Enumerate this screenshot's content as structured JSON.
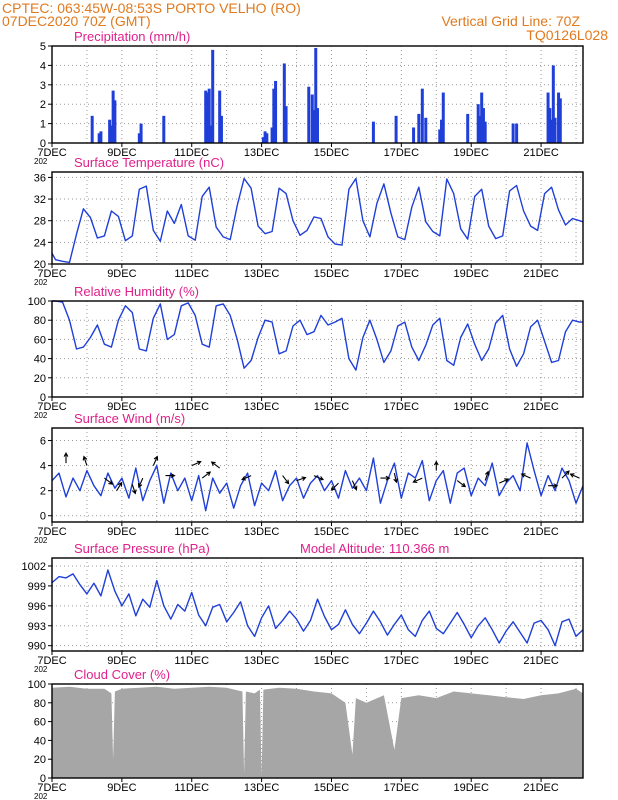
{
  "header": {
    "left_line1": "CPTEC:   063:45W-08:53S  PORTO VELHO (RO)",
    "left_line2": "07DEC2020 70Z (GMT)",
    "right_line1": "Vertical Grid Line: 70Z",
    "right_line2": "TQ0126L028"
  },
  "colors": {
    "header": "#e07a1f",
    "title": "#e0208c",
    "line": "#1f3fd8",
    "bar": "#1f3fd8",
    "cloud": "#a6a6a6",
    "axis": "#000000",
    "grid": "#9a9a9a"
  },
  "x_tick_labels": [
    "7DEC",
    "9DEC",
    "11DEC",
    "13DEC",
    "15DEC",
    "17DEC",
    "19DEC",
    "21DEC"
  ],
  "x_tick_sublabel": "202",
  "chart_data": [
    {
      "type": "bar",
      "title": "Precipitation  (mm/h)",
      "x_range": [
        0,
        15.2
      ],
      "ylim": [
        0,
        5
      ],
      "yticks": [
        0,
        1,
        2,
        3,
        4,
        5
      ],
      "series": [
        {
          "x": [
            1.15,
            1.35,
            1.4,
            1.65,
            1.7,
            1.75,
            1.8,
            2.5,
            2.55,
            3.2,
            4.4,
            4.45,
            4.5,
            4.55,
            4.6,
            4.8,
            4.85,
            6.05,
            6.1,
            6.15,
            6.3,
            6.35,
            6.4,
            6.65,
            6.7,
            7.35,
            7.45,
            7.5,
            7.55,
            7.6,
            9.2,
            9.85,
            10.35,
            10.5,
            10.6,
            10.7,
            11.1,
            11.15,
            11.2,
            11.9,
            12.2,
            12.25,
            12.3,
            12.35,
            12.4,
            13.2,
            13.3,
            14.2,
            14.25,
            14.3,
            14.35,
            14.4,
            14.5,
            14.55
          ],
          "y": [
            1.4,
            0.5,
            0.6,
            1.2,
            0.9,
            2.7,
            2.2,
            0.5,
            1.0,
            1.4,
            2.7,
            2.6,
            2.8,
            0.9,
            4.8,
            2.7,
            1.4,
            0.3,
            0.6,
            0.5,
            0.8,
            2.8,
            3.2,
            4.1,
            1.9,
            2.9,
            2.5,
            1.7,
            4.9,
            1.8,
            1.1,
            1.4,
            0.8,
            1.5,
            2.8,
            1.3,
            0.7,
            1.2,
            2.6,
            1.5,
            2.0,
            1.4,
            2.6,
            1.8,
            1.1,
            1.0,
            1.0,
            2.6,
            1.8,
            1.2,
            4.0,
            1.3,
            2.6,
            2.3
          ]
        }
      ]
    },
    {
      "type": "line",
      "title": "Surface Temperature  (nC)",
      "x_range": [
        0,
        15.2
      ],
      "ylim": [
        20,
        37
      ],
      "yticks": [
        20,
        24,
        28,
        32,
        36
      ],
      "series": [
        {
          "x": [
            0,
            0.1,
            0.3,
            0.5,
            0.7,
            0.9,
            1.1,
            1.3,
            1.5,
            1.7,
            1.9,
            2.1,
            2.3,
            2.5,
            2.7,
            2.9,
            3.1,
            3.3,
            3.5,
            3.7,
            3.9,
            4.1,
            4.3,
            4.5,
            4.7,
            4.9,
            5.1,
            5.3,
            5.5,
            5.7,
            5.9,
            6.1,
            6.3,
            6.5,
            6.7,
            6.9,
            7.1,
            7.3,
            7.5,
            7.7,
            7.9,
            8.1,
            8.3,
            8.5,
            8.7,
            8.9,
            9.1,
            9.3,
            9.5,
            9.7,
            9.9,
            10.1,
            10.3,
            10.5,
            10.7,
            10.9,
            11.1,
            11.3,
            11.5,
            11.7,
            11.9,
            12.1,
            12.3,
            12.5,
            12.7,
            12.9,
            13.1,
            13.3,
            13.5,
            13.7,
            13.9,
            14.1,
            14.3,
            14.5,
            14.7,
            14.9,
            15.1,
            15.2
          ],
          "y": [
            22,
            20.8,
            20.5,
            20.3,
            25.5,
            30.2,
            28.6,
            24.8,
            25.2,
            29.8,
            28.8,
            24.3,
            25.2,
            33.8,
            34.4,
            26.2,
            24.2,
            29.8,
            27.5,
            31.0,
            25.2,
            24.4,
            32.5,
            34.2,
            26.8,
            25.0,
            24.5,
            30.8,
            35.8,
            34.0,
            27.0,
            25.6,
            26.0,
            34.0,
            33.0,
            28.0,
            25.3,
            26.2,
            28.7,
            28.4,
            25.0,
            23.7,
            23.5,
            33.8,
            35.8,
            28.0,
            25.0,
            31.2,
            34.8,
            29.4,
            25.0,
            24.5,
            30.5,
            34.2,
            27.8,
            26.0,
            25.2,
            35.7,
            33.0,
            26.5,
            24.6,
            32.5,
            33.8,
            27.0,
            24.7,
            25.2,
            33.5,
            34.5,
            29.8,
            27.0,
            26.2,
            33.0,
            34.2,
            30.0,
            27.2,
            28.4,
            28.0,
            27.8
          ]
        }
      ]
    },
    {
      "type": "line",
      "title": "Relative Humidity  (%)",
      "x_range": [
        0,
        15.2
      ],
      "ylim": [
        0,
        100
      ],
      "yticks": [
        0,
        20,
        40,
        60,
        80,
        100
      ],
      "series": [
        {
          "x": [
            0,
            0.1,
            0.3,
            0.5,
            0.7,
            0.9,
            1.1,
            1.3,
            1.5,
            1.7,
            1.9,
            2.1,
            2.3,
            2.5,
            2.7,
            2.9,
            3.1,
            3.3,
            3.5,
            3.7,
            3.9,
            4.1,
            4.3,
            4.5,
            4.7,
            4.9,
            5.1,
            5.3,
            5.5,
            5.7,
            5.9,
            6.1,
            6.3,
            6.5,
            6.7,
            6.9,
            7.1,
            7.3,
            7.5,
            7.7,
            7.9,
            8.1,
            8.3,
            8.5,
            8.7,
            8.9,
            9.1,
            9.3,
            9.5,
            9.7,
            9.9,
            10.1,
            10.3,
            10.5,
            10.7,
            10.9,
            11.1,
            11.3,
            11.5,
            11.7,
            11.9,
            12.1,
            12.3,
            12.5,
            12.7,
            12.9,
            13.1,
            13.3,
            13.5,
            13.7,
            13.9,
            14.1,
            14.3,
            14.5,
            14.7,
            14.9,
            15.1,
            15.2
          ],
          "y": [
            100,
            100,
            99,
            80,
            50,
            52,
            62,
            75,
            55,
            52,
            80,
            95,
            88,
            50,
            48,
            82,
            97,
            60,
            65,
            95,
            98,
            85,
            55,
            52,
            95,
            97,
            85,
            60,
            30,
            38,
            62,
            80,
            78,
            45,
            48,
            74,
            80,
            65,
            68,
            85,
            75,
            78,
            82,
            40,
            28,
            62,
            80,
            60,
            36,
            48,
            74,
            78,
            52,
            38,
            54,
            75,
            82,
            38,
            33,
            62,
            76,
            55,
            38,
            50,
            77,
            85,
            50,
            32,
            45,
            73,
            80,
            58,
            36,
            38,
            68,
            80,
            78,
            78
          ]
        }
      ]
    },
    {
      "type": "line",
      "title": "Surface Wind  (m/s)",
      "x_range": [
        0,
        15.2
      ],
      "ylim": [
        -0.5,
        7
      ],
      "yticks": [
        0,
        2,
        4,
        6
      ],
      "series": [
        {
          "x": [
            0,
            0.2,
            0.4,
            0.6,
            0.8,
            1.0,
            1.2,
            1.4,
            1.6,
            1.8,
            2.0,
            2.2,
            2.4,
            2.6,
            2.8,
            3.0,
            3.2,
            3.4,
            3.6,
            3.8,
            4.0,
            4.2,
            4.4,
            4.6,
            4.8,
            5.0,
            5.2,
            5.4,
            5.6,
            5.8,
            6.0,
            6.2,
            6.4,
            6.6,
            6.8,
            7.0,
            7.2,
            7.4,
            7.6,
            7.8,
            8.0,
            8.2,
            8.4,
            8.6,
            8.8,
            9.0,
            9.2,
            9.4,
            9.6,
            9.8,
            10.0,
            10.2,
            10.4,
            10.6,
            10.8,
            11.0,
            11.2,
            11.4,
            11.6,
            11.8,
            12.0,
            12.2,
            12.4,
            12.6,
            12.8,
            13.0,
            13.2,
            13.4,
            13.6,
            13.8,
            14.0,
            14.2,
            14.4,
            14.6,
            14.8,
            15.0,
            15.2
          ],
          "y": [
            2.8,
            3.4,
            1.5,
            3.0,
            2.0,
            3.6,
            2.4,
            1.6,
            3.4,
            2.2,
            3.0,
            1.4,
            3.8,
            1.2,
            2.8,
            4.0,
            1.0,
            3.4,
            2.0,
            3.0,
            1.2,
            3.2,
            0.4,
            3.0,
            1.8,
            2.6,
            0.6,
            2.4,
            3.4,
            0.8,
            2.6,
            2.0,
            3.6,
            1.2,
            2.4,
            3.0,
            1.4,
            2.6,
            3.2,
            2.0,
            2.8,
            1.4,
            3.6,
            2.2,
            3.0,
            2.0,
            4.6,
            1.0,
            2.8,
            4.2,
            1.4,
            3.4,
            3.0,
            4.4,
            1.2,
            2.8,
            3.6,
            1.0,
            3.4,
            3.8,
            1.6,
            3.0,
            2.4,
            4.2,
            1.6,
            2.6,
            3.2,
            2.0,
            5.8,
            3.6,
            1.6,
            3.2,
            2.0,
            3.8,
            2.8,
            1.0,
            2.4
          ]
        }
      ],
      "vectors": [
        {
          "x": 0.4,
          "y": 4.2,
          "u": 0,
          "v": 1
        },
        {
          "x": 1.0,
          "y": 4.0,
          "u": -0.3,
          "v": 0.9
        },
        {
          "x": 1.5,
          "y": 3.0,
          "u": 0.8,
          "v": -0.6
        },
        {
          "x": 1.85,
          "y": 2.0,
          "u": 0.5,
          "v": 0.8
        },
        {
          "x": 2.3,
          "y": 2.5,
          "u": 0.3,
          "v": -0.9
        },
        {
          "x": 2.6,
          "y": 3.0,
          "u": -0.4,
          "v": -0.9
        },
        {
          "x": 2.9,
          "y": 4.0,
          "u": 0.4,
          "v": 0.9
        },
        {
          "x": 3.25,
          "y": 3.2,
          "u": 0.9,
          "v": 0
        },
        {
          "x": 4.0,
          "y": 4.0,
          "u": 0.9,
          "v": 0.4
        },
        {
          "x": 4.3,
          "y": 3.0,
          "u": 0.8,
          "v": 0.6
        },
        {
          "x": 4.8,
          "y": 3.8,
          "u": -0.8,
          "v": 0.6
        },
        {
          "x": 5.7,
          "y": 3.2,
          "u": -0.9,
          "v": -0.4
        },
        {
          "x": 6.6,
          "y": 3.2,
          "u": 0.6,
          "v": -0.8
        },
        {
          "x": 7.0,
          "y": 2.8,
          "u": 0.9,
          "v": 0.3
        },
        {
          "x": 7.5,
          "y": 3.2,
          "u": 0.9,
          "v": -0.4
        },
        {
          "x": 8.2,
          "y": 2.6,
          "u": -0.7,
          "v": -0.7
        },
        {
          "x": 8.6,
          "y": 2.8,
          "u": 0.4,
          "v": -0.9
        },
        {
          "x": 9.4,
          "y": 3.0,
          "u": 0.9,
          "v": 0
        },
        {
          "x": 9.8,
          "y": 3.4,
          "u": 0.2,
          "v": -0.9
        },
        {
          "x": 10.6,
          "y": 3.0,
          "u": -0.9,
          "v": -0.4
        },
        {
          "x": 11.0,
          "y": 3.6,
          "u": 0,
          "v": 0.9
        },
        {
          "x": 11.6,
          "y": 2.8,
          "u": 0.8,
          "v": -0.6
        },
        {
          "x": 12.4,
          "y": 2.8,
          "u": 0.3,
          "v": 0.9
        },
        {
          "x": 12.8,
          "y": 2.6,
          "u": 0.9,
          "v": 0.4
        },
        {
          "x": 13.7,
          "y": 3.0,
          "u": -0.9,
          "v": 0.4
        },
        {
          "x": 14.2,
          "y": 2.4,
          "u": 0.9,
          "v": 0
        },
        {
          "x": 14.6,
          "y": 3.0,
          "u": 0.7,
          "v": 0.7
        },
        {
          "x": 15.1,
          "y": 3.0,
          "u": -0.9,
          "v": 0.4
        }
      ]
    },
    {
      "type": "line",
      "title": "Surface Pressure  (hPa)",
      "annotation": "Model Altitude: 110.366  m",
      "x_range": [
        0,
        15.2
      ],
      "ylim": [
        989.2,
        1003.2
      ],
      "yticks": [
        990,
        993,
        996,
        999,
        1002
      ],
      "series": [
        {
          "x": [
            0,
            0.2,
            0.4,
            0.6,
            0.8,
            1.0,
            1.2,
            1.4,
            1.6,
            1.8,
            2.0,
            2.2,
            2.4,
            2.6,
            2.8,
            3.0,
            3.2,
            3.4,
            3.6,
            3.8,
            4.0,
            4.2,
            4.4,
            4.6,
            4.8,
            5.0,
            5.2,
            5.4,
            5.6,
            5.8,
            6.0,
            6.2,
            6.4,
            6.6,
            6.8,
            7.0,
            7.2,
            7.4,
            7.6,
            7.8,
            8.0,
            8.2,
            8.4,
            8.6,
            8.8,
            9.0,
            9.2,
            9.4,
            9.6,
            9.8,
            10.0,
            10.2,
            10.4,
            10.6,
            10.8,
            11.0,
            11.2,
            11.4,
            11.6,
            11.8,
            12.0,
            12.2,
            12.4,
            12.6,
            12.8,
            13.0,
            13.2,
            13.4,
            13.6,
            13.8,
            14.0,
            14.2,
            14.4,
            14.6,
            14.8,
            15.0,
            15.2
          ],
          "y": [
            999.5,
            1000.4,
            1000.2,
            1000.8,
            999.2,
            997.8,
            999.4,
            997.5,
            1001.4,
            998.2,
            996.0,
            997.8,
            994.5,
            997.0,
            995.8,
            999.8,
            996.0,
            994.0,
            996.2,
            995.2,
            998.0,
            994.6,
            993.0,
            995.8,
            996.2,
            993.6,
            995.0,
            996.6,
            993.0,
            991.4,
            994.2,
            996.0,
            992.6,
            993.8,
            995.2,
            994.0,
            992.2,
            993.8,
            997.0,
            994.4,
            992.4,
            993.2,
            995.4,
            993.2,
            991.8,
            993.4,
            995.2,
            993.6,
            991.6,
            993.2,
            994.6,
            992.4,
            991.4,
            993.8,
            995.2,
            992.6,
            991.8,
            993.4,
            995.0,
            993.2,
            991.2,
            993.0,
            994.2,
            992.4,
            990.4,
            992.2,
            993.6,
            992.0,
            990.4,
            993.4,
            993.8,
            992.4,
            990.0,
            993.6,
            994.0,
            991.4,
            992.4
          ]
        }
      ]
    },
    {
      "type": "area",
      "title": "Cloud Cover  (%)",
      "x_range": [
        0,
        15.2
      ],
      "ylim": [
        0,
        100
      ],
      "yticks": [
        0,
        20,
        40,
        60,
        80,
        100
      ],
      "series": [
        {
          "x": [
            0,
            0.5,
            1.0,
            1.5,
            1.7,
            1.75,
            1.8,
            2.0,
            2.5,
            3.0,
            3.5,
            4.0,
            4.5,
            5.0,
            5.45,
            5.5,
            5.55,
            5.8,
            5.95,
            6.0,
            6.05,
            6.5,
            7.0,
            7.5,
            8.0,
            8.4,
            8.6,
            8.7,
            9.0,
            9.5,
            9.8,
            10.0,
            10.5,
            11.0,
            11.5,
            12.0,
            12.5,
            13.0,
            13.5,
            14.0,
            14.5,
            15.0,
            15.2
          ],
          "y": [
            96,
            97,
            95,
            95,
            90,
            20,
            92,
            95,
            96,
            97,
            95,
            96,
            97,
            96,
            92,
            5,
            92,
            90,
            94,
            2,
            94,
            96,
            95,
            92,
            90,
            80,
            25,
            85,
            80,
            88,
            30,
            85,
            88,
            85,
            92,
            90,
            88,
            86,
            84,
            88,
            90,
            95,
            90
          ]
        }
      ]
    }
  ]
}
